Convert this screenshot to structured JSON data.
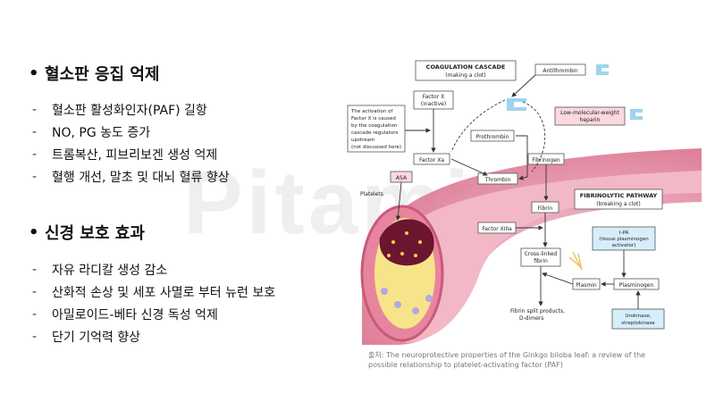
{
  "watermark": "Pitamin",
  "section1": {
    "bullet": "•",
    "title": "혈소판 응집 억제",
    "items": [
      "혈소판 활성화인자(PAF) 길항",
      "NO, PG 농도 증가",
      "트롬복산, 피브리보겐 생성 억제",
      "혈행 개선, 말초 및 대뇌 혈류 향상"
    ]
  },
  "section2": {
    "bullet": "•",
    "title": "신경 보호 효과",
    "items": [
      "자유 라디칼 생성 감소",
      "산화적 손상 및 세포 사멸로 부터 뉴런 보호",
      "아밀로이드-베타 신경 독성 억제",
      "단기 기억력 향상"
    ]
  },
  "dash": "-",
  "figure": {
    "coag_title": "COAGULATION CASCADE",
    "coag_sub": "(making a clot)",
    "fib_title": "FIBRINOLYTIC PATHWAY",
    "fib_sub": "(breaking a clot)",
    "antithrombin": "Antithrombin",
    "factor_x_1": "Factor X",
    "factor_x_2": "(inactive)",
    "lmwh_1": "Low-molecular-weight",
    "lmwh_2": "heparin",
    "activation_note": [
      "The activation of",
      "Factor X is caused",
      "by the coagulation",
      "cascade regulators",
      "upstream",
      "(not discussed here)"
    ],
    "prothrombin": "Prothrombin",
    "factor_xa": "Factor Xa",
    "fibrinogen": "Fibrinogen",
    "asa": "ASA",
    "thrombin": "Thrombin",
    "platelets": "Platelets",
    "fibrin": "Fibrin",
    "factor_xiiia": "Factor XIIIa",
    "tpa_1": "t-PA",
    "tpa_2": "(tissue plasminogen",
    "tpa_3": "activator)",
    "cross_1": "Cross-linked",
    "cross_2": "fibrin",
    "plasmin": "Plasmin",
    "plasminogen": "Plasminogen",
    "split_1": "Fibrin split products,",
    "split_2": "D-dimers",
    "uro_1": "Urokinase,",
    "uro_2": "streptokinase"
  },
  "source": {
    "prefix": "출처: ",
    "text": "The neuroprotective properties of the Ginkgo biloba leaf: a review of the possible relationship to platelet-activating factor (PAF)"
  }
}
